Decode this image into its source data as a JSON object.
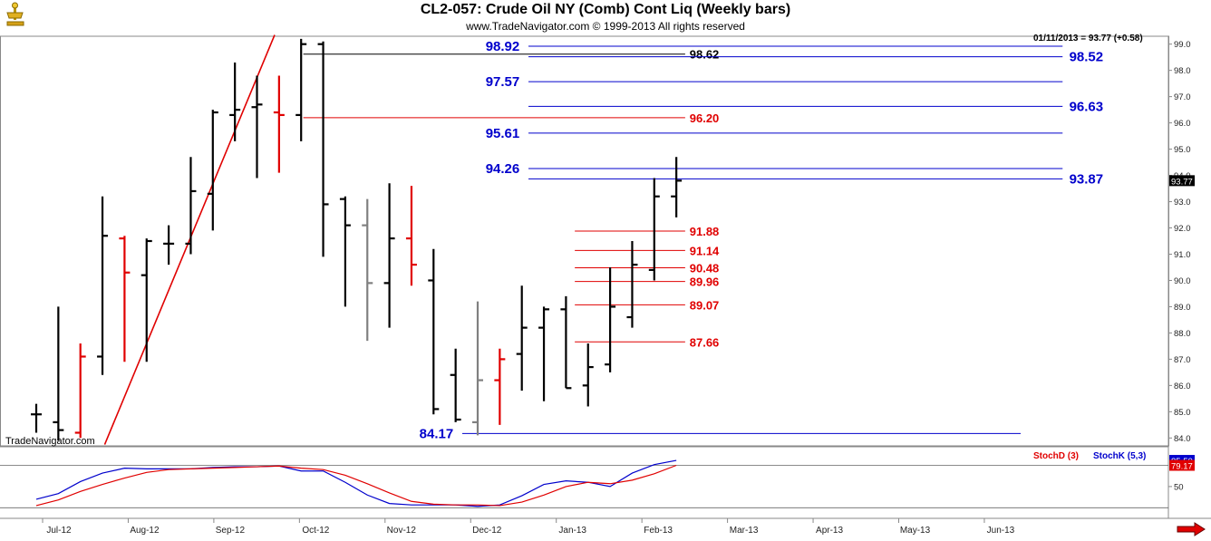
{
  "header": {
    "title": "CL2-057:  Crude Oil NY (Comb) Cont Liq  (Weekly bars)",
    "subtitle": "www.TradeNavigator.com © 1999-2013 All rights reserved",
    "last_value": "01/11/2013 = 93.77 (+0.58)",
    "watermark": "TradeNavigator.com"
  },
  "colors": {
    "up_bar": "#000000",
    "down_bar": "#e00000",
    "neutral_bar": "#808080",
    "blue_level": "#0000cc",
    "red_level": "#e00000",
    "black_level": "#000000",
    "stoch_d": "#e00000",
    "stoch_k": "#0000cc",
    "price_tag_bg": "#000000",
    "stoch_tag_bg": "#e00000"
  },
  "chart_data": [
    {
      "type": "ohlc",
      "period": "weekly",
      "ylim": [
        83.7,
        99.3
      ],
      "y_ticks": [
        "84.0",
        "85.0",
        "86.0",
        "87.0",
        "88.0",
        "89.0",
        "90.0",
        "91.0",
        "92.0",
        "93.0",
        "94.0",
        "95.0",
        "96.0",
        "97.0",
        "98.0",
        "99.0"
      ],
      "x_ticks": [
        "Jul-12",
        "Aug-12",
        "Sep-12",
        "Oct-12",
        "Nov-12",
        "Dec-12",
        "Jan-13",
        "Feb-13",
        "Mar-13",
        "Apr-13",
        "May-13",
        "Jun-13"
      ],
      "bars": [
        {
          "o": 84.9,
          "h": 85.3,
          "l": 84.2,
          "c": 84.9,
          "color": "up"
        },
        {
          "o": 84.6,
          "h": 89.0,
          "l": 83.9,
          "c": 84.3,
          "color": "up"
        },
        {
          "o": 84.2,
          "h": 87.6,
          "l": 84.0,
          "c": 87.1,
          "color": "down"
        },
        {
          "o": 87.1,
          "h": 93.2,
          "l": 86.4,
          "c": 91.7,
          "color": "up"
        },
        {
          "o": 91.6,
          "h": 91.7,
          "l": 86.9,
          "c": 90.3,
          "color": "down"
        },
        {
          "o": 90.2,
          "h": 91.6,
          "l": 86.9,
          "c": 91.5,
          "color": "up"
        },
        {
          "o": 91.4,
          "h": 92.1,
          "l": 90.6,
          "c": 91.4,
          "color": "up"
        },
        {
          "o": 91.4,
          "h": 94.7,
          "l": 91.0,
          "c": 93.4,
          "color": "up"
        },
        {
          "o": 93.3,
          "h": 96.5,
          "l": 91.9,
          "c": 96.4,
          "color": "up"
        },
        {
          "o": 96.3,
          "h": 98.3,
          "l": 95.3,
          "c": 96.5,
          "color": "up"
        },
        {
          "o": 96.6,
          "h": 97.8,
          "l": 93.9,
          "c": 96.7,
          "color": "up"
        },
        {
          "o": 96.4,
          "h": 97.8,
          "l": 94.1,
          "c": 96.3,
          "color": "down"
        },
        {
          "o": 96.3,
          "h": 99.2,
          "l": 95.3,
          "c": 99.0,
          "color": "up"
        },
        {
          "o": 99.0,
          "h": 99.1,
          "l": 90.9,
          "c": 92.9,
          "color": "up"
        },
        {
          "o": 93.1,
          "h": 93.2,
          "l": 89.0,
          "c": 92.1,
          "color": "up"
        },
        {
          "o": 92.1,
          "h": 93.1,
          "l": 87.7,
          "c": 89.9,
          "color": "neutral"
        },
        {
          "o": 89.9,
          "h": 93.7,
          "l": 88.2,
          "c": 91.6,
          "color": "up"
        },
        {
          "o": 91.6,
          "h": 93.6,
          "l": 89.8,
          "c": 90.6,
          "color": "down"
        },
        {
          "o": 90.0,
          "h": 91.2,
          "l": 84.9,
          "c": 85.1,
          "color": "up"
        },
        {
          "o": 86.4,
          "h": 87.4,
          "l": 84.6,
          "c": 84.7,
          "color": "up"
        },
        {
          "o": 84.6,
          "h": 89.2,
          "l": 84.1,
          "c": 86.2,
          "color": "neutral"
        },
        {
          "o": 86.2,
          "h": 87.4,
          "l": 84.5,
          "c": 87.0,
          "color": "down"
        },
        {
          "o": 87.2,
          "h": 89.8,
          "l": 85.8,
          "c": 88.2,
          "color": "up"
        },
        {
          "o": 88.2,
          "h": 89.0,
          "l": 85.4,
          "c": 88.9,
          "color": "up"
        },
        {
          "o": 88.9,
          "h": 89.4,
          "l": 85.9,
          "c": 85.9,
          "color": "up"
        },
        {
          "o": 86.0,
          "h": 87.6,
          "l": 85.2,
          "c": 86.7,
          "color": "up"
        },
        {
          "o": 86.8,
          "h": 90.5,
          "l": 86.5,
          "c": 89.0,
          "color": "up"
        },
        {
          "o": 88.6,
          "h": 91.5,
          "l": 88.2,
          "c": 90.6,
          "color": "up"
        },
        {
          "o": 90.4,
          "h": 93.9,
          "l": 90.0,
          "c": 93.2,
          "color": "up"
        },
        {
          "o": 93.2,
          "h": 94.7,
          "l": 92.4,
          "c": 93.8,
          "color": "up"
        }
      ],
      "trendline": {
        "points": [
          {
            "bar": 3.1,
            "y": 83.75
          },
          {
            "bar": 10.8,
            "y": 99.35
          }
        ],
        "color": "#e00000"
      },
      "levels": [
        {
          "value": "98.92",
          "y": 98.92,
          "color": "blue",
          "from_bar": 22.3,
          "to_bar": 46.5,
          "label_side": "left",
          "label_bar": 21.9
        },
        {
          "value": "98.62",
          "y": 98.62,
          "color": "black",
          "from_bar": 12.1,
          "to_bar": 29.4,
          "label_side": "right",
          "label_bar": 29.6
        },
        {
          "value": "98.52",
          "y": 98.52,
          "color": "blue",
          "from_bar": 22.3,
          "to_bar": 46.5,
          "label_side": "right",
          "label_bar": 46.8
        },
        {
          "value": "97.57",
          "y": 97.57,
          "color": "blue",
          "from_bar": 22.3,
          "to_bar": 46.5,
          "label_side": "left",
          "label_bar": 21.9
        },
        {
          "value": "96.63",
          "y": 96.63,
          "color": "blue",
          "from_bar": 22.3,
          "to_bar": 46.5,
          "label_side": "right",
          "label_bar": 46.8
        },
        {
          "value": "96.20",
          "y": 96.2,
          "color": "red",
          "from_bar": 12.1,
          "to_bar": 29.4,
          "label_side": "right",
          "label_bar": 29.6
        },
        {
          "value": "95.61",
          "y": 95.61,
          "color": "blue",
          "from_bar": 22.3,
          "to_bar": 46.5,
          "label_side": "left",
          "label_bar": 21.9
        },
        {
          "value": "94.26",
          "y": 94.26,
          "color": "blue",
          "from_bar": 22.3,
          "to_bar": 46.5,
          "label_side": "left",
          "label_bar": 21.9
        },
        {
          "value": "93.87",
          "y": 93.87,
          "color": "blue",
          "from_bar": 22.3,
          "to_bar": 46.5,
          "label_side": "right",
          "label_bar": 46.8
        },
        {
          "value": "91.88",
          "y": 91.88,
          "color": "red",
          "from_bar": 24.4,
          "to_bar": 29.4,
          "label_side": "right",
          "label_bar": 29.6
        },
        {
          "value": "91.14",
          "y": 91.14,
          "color": "red",
          "from_bar": 24.4,
          "to_bar": 29.4,
          "label_side": "right",
          "label_bar": 29.6
        },
        {
          "value": "90.48",
          "y": 90.48,
          "color": "red",
          "from_bar": 24.4,
          "to_bar": 29.4,
          "label_side": "right",
          "label_bar": 29.6
        },
        {
          "value": "89.96",
          "y": 89.96,
          "color": "red",
          "from_bar": 24.4,
          "to_bar": 29.4,
          "label_side": "right",
          "label_bar": 29.6
        },
        {
          "value": "89.07",
          "y": 89.07,
          "color": "red",
          "from_bar": 24.4,
          "to_bar": 29.4,
          "label_side": "right",
          "label_bar": 29.6
        },
        {
          "value": "87.66",
          "y": 87.66,
          "color": "red",
          "from_bar": 24.4,
          "to_bar": 29.4,
          "label_side": "right",
          "label_bar": 29.6
        },
        {
          "value": "84.17",
          "y": 84.17,
          "color": "blue",
          "from_bar": 19.3,
          "to_bar": 44.6,
          "label_side": "left",
          "label_bar": 18.9
        }
      ],
      "last_price_tag": "93.77"
    },
    {
      "type": "line",
      "name": "Stochastic",
      "ylim": [
        5,
        105
      ],
      "y_ticks": [
        "50"
      ],
      "legend": [
        {
          "label": "StochD (3)",
          "color": "red"
        },
        {
          "label": "StochK (5,3)",
          "color": "blue"
        }
      ],
      "reference_lines": [
        80,
        20
      ],
      "series": [
        {
          "name": "StochK (5,3)",
          "color": "blue",
          "values": [
            32,
            40,
            57,
            69,
            76,
            75,
            75,
            75,
            77,
            78,
            78,
            79,
            72,
            72,
            56,
            38,
            26,
            24,
            24,
            24,
            22,
            24,
            37,
            53,
            58,
            56,
            50,
            69,
            81,
            87
          ]
        },
        {
          "name": "StochD (3)",
          "color": "red",
          "values": [
            23,
            31,
            43,
            53,
            62,
            70,
            74,
            75,
            76,
            77,
            78,
            79,
            76,
            74,
            66,
            54,
            41,
            29,
            25,
            24,
            24,
            23,
            28,
            38,
            50,
            56,
            54,
            59,
            68,
            80
          ]
        }
      ],
      "value_tags": [
        "85.50",
        "79.17"
      ]
    }
  ]
}
